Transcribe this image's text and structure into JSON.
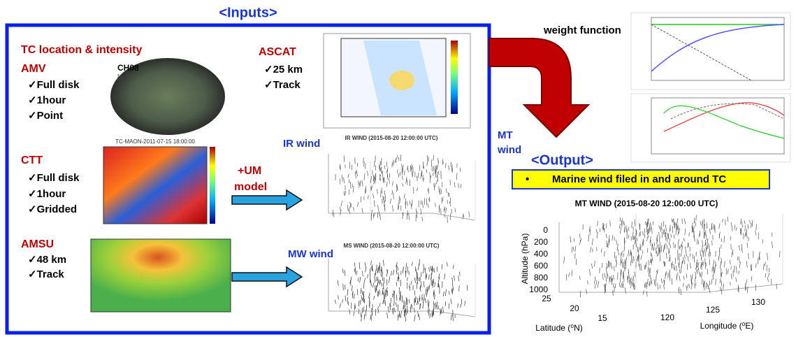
{
  "inputs": {
    "title": "<Inputs>",
    "tc_heading": "TC location & intensity",
    "amv": {
      "label": "AMV",
      "items": [
        "✓Full disk",
        "✓1hour",
        "✓Point"
      ],
      "image_label": "CH08",
      "image_sublabel": "[6.2]"
    },
    "ascat": {
      "label": "ASCAT",
      "items": [
        "✓25 km",
        "✓Track"
      ]
    },
    "ctt": {
      "label": "CTT",
      "items": [
        "✓Full disk",
        "✓1hour",
        "✓Gridded"
      ],
      "image_title": "TC-MAON-2011-07-15 18:00:00"
    },
    "amsu": {
      "label": "AMSU",
      "items": [
        "✓48 km",
        "✓Track"
      ]
    },
    "um_model": [
      "+UM",
      "model"
    ],
    "ir_wind": {
      "label": "IR wind",
      "plot_title": "IR WIND (2015-08-20 12:00:00 UTC)"
    },
    "mw_wind": {
      "label": "MW wind",
      "plot_title": "MS WIND (2015-08-20 12:00:00 UTC)"
    }
  },
  "mt_wind_label": [
    "MT",
    "wind"
  ],
  "weight_function": "weight function",
  "output": {
    "title": "<Output>",
    "bullet": "Marine wind filed in and around TC"
  },
  "mt_plot": {
    "title": "MT WIND (2015-08-20 12:00:00 UTC)",
    "z_label": "Altitude (hPa)",
    "z_ticks": [
      "0",
      "200",
      "400",
      "600",
      "800",
      "1000"
    ],
    "lat_label": "Latitude (⁰N)",
    "lat_ticks": [
      "25",
      "20",
      "15"
    ],
    "lon_label": "Longitude (⁰E)",
    "lon_ticks": [
      "120",
      "125",
      "130"
    ]
  }
}
